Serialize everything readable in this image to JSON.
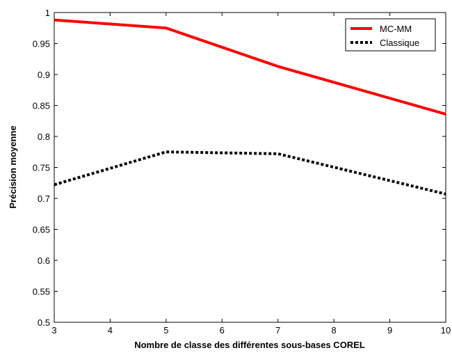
{
  "chart_data": {
    "type": "line",
    "title": "",
    "xlabel": "Nombre de classe des différentes sous-bases COREL",
    "ylabel": "Précision moyenne",
    "xlim": [
      3,
      10
    ],
    "ylim": [
      0.5,
      1
    ],
    "x_ticks": [
      "3",
      "4",
      "5",
      "6",
      "7",
      "8",
      "9",
      "10"
    ],
    "y_ticks": [
      "0.5",
      "0.55",
      "0.6",
      "0.65",
      "0.7",
      "0.75",
      "0.8",
      "0.85",
      "0.9",
      "0.95",
      "1"
    ],
    "grid": false,
    "legend_position": "top-right",
    "series": [
      {
        "name": "MC-MM",
        "color": "#ff0000",
        "style": "solid",
        "x": [
          3,
          5,
          7,
          10
        ],
        "y": [
          0.988,
          0.975,
          0.913,
          0.836
        ]
      },
      {
        "name": "Classique",
        "color": "#000000",
        "style": "dotted",
        "x": [
          3,
          5,
          7,
          10
        ],
        "y": [
          0.722,
          0.775,
          0.772,
          0.707
        ]
      }
    ]
  }
}
